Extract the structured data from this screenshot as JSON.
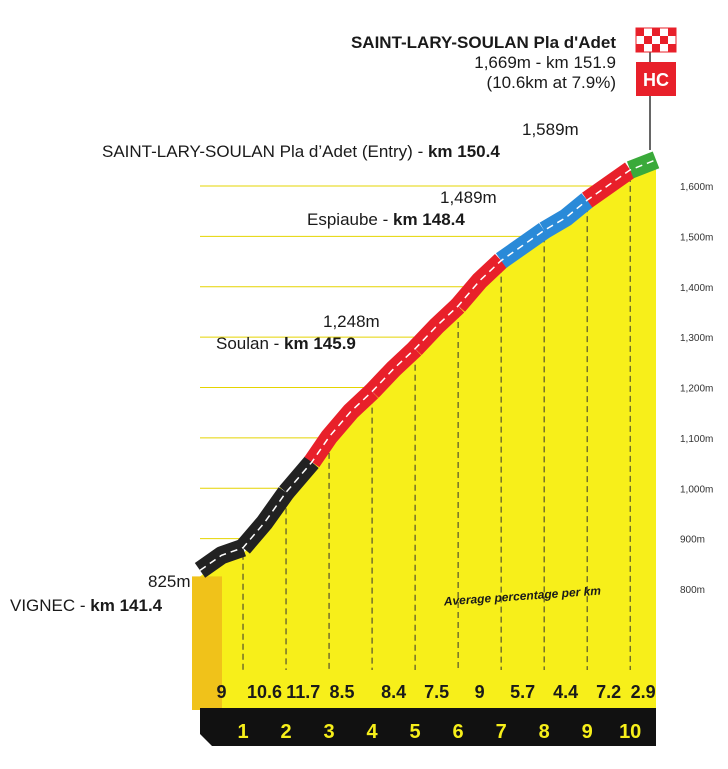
{
  "finish": {
    "name": "SAINT-LARY-SOULAN Pla d'Adet",
    "line1": "1,669m - km 151.9",
    "line2": "(10.6km at 7.9%)",
    "category": "HC"
  },
  "waypoints": {
    "entry": {
      "alt": "1,589m",
      "name": "SAINT-LARY-SOULAN Pla d’Adet (Entry) - ",
      "km": "km 150.4"
    },
    "espiaube": {
      "alt": "1,489m",
      "name": "Espiaube - ",
      "km": "km 148.4"
    },
    "soulan": {
      "alt": "1,248m",
      "name": "Soulan - ",
      "km": "km 145.9"
    },
    "vignec": {
      "alt": "825m",
      "name": "VIGNEC - ",
      "km": "km 141.4"
    }
  },
  "chart_data": {
    "type": "area",
    "title": "SAINT-LARY-SOULAN Pla d'Adet",
    "x_unit": "km",
    "ylim": [
      720,
      1680
    ],
    "ytick_labels": [
      "800m",
      "900m",
      "1,000m",
      "1,100m",
      "1,200m",
      "1,300m",
      "1,400m",
      "1,500m",
      "1,600m"
    ],
    "ytick_values": [
      800,
      900,
      1000,
      1100,
      1200,
      1300,
      1400,
      1500,
      1600
    ],
    "xtick_labels": [
      "1",
      "2",
      "3",
      "4",
      "5",
      "6",
      "7",
      "8",
      "9",
      "10"
    ],
    "annotation": "Average percentage per km",
    "profile": {
      "x": [
        0,
        0.5,
        1,
        1.5,
        2,
        2.6,
        3,
        3.5,
        4,
        4.5,
        5,
        5.5,
        6,
        6.5,
        7,
        7.5,
        8,
        8.5,
        9,
        9.5,
        10,
        10.6
      ],
      "y": [
        825,
        855,
        870,
        920,
        980,
        1040,
        1090,
        1140,
        1180,
        1225,
        1265,
        1310,
        1350,
        1400,
        1440,
        1470,
        1500,
        1525,
        1560,
        1590,
        1620,
        1640
      ]
    },
    "series": [
      {
        "name": "segment 1",
        "gradient": "9",
        "color": "#222222"
      },
      {
        "name": "segment 2",
        "gradient": "10.6",
        "color": "#222222"
      },
      {
        "name": "segment 3",
        "gradient": "11.7",
        "color": "#222222"
      },
      {
        "name": "segment 4",
        "gradient": "8.5",
        "color": "#e8202a"
      },
      {
        "name": "segment 5",
        "gradient": "8.4",
        "color": "#e8202a"
      },
      {
        "name": "segment 6",
        "gradient": "7.5",
        "color": "#e8202a"
      },
      {
        "name": "segment 7",
        "gradient": "9",
        "color": "#e8202a"
      },
      {
        "name": "segment 8",
        "gradient": "5.7",
        "color": "#2a8ad8"
      },
      {
        "name": "segment 9",
        "gradient": "4.4",
        "color": "#2a8ad8"
      },
      {
        "name": "segment 10",
        "gradient": "7.2",
        "color": "#e8202a"
      },
      {
        "name": "segment 11",
        "gradient": "2.9",
        "color": "#3aaa3a"
      }
    ],
    "colors": {
      "fill": "#f7ef1a",
      "edge": "#d9c900",
      "base": "#111111"
    }
  }
}
